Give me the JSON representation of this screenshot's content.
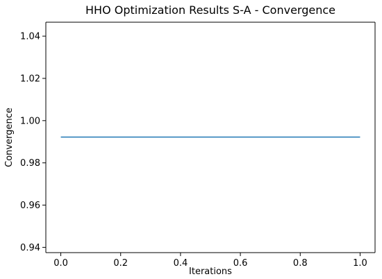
{
  "chart_data": {
    "type": "line",
    "title": "HHO Optimization Results S-A - Convergence",
    "xlabel": "Iterations",
    "ylabel": "Convergence",
    "xlim": [
      -0.05,
      1.05
    ],
    "ylim": [
      0.9375,
      1.0466
    ],
    "xticks": [
      0.0,
      0.2,
      0.4,
      0.6,
      0.8,
      1.0
    ],
    "xtick_labels": [
      "0.0",
      "0.2",
      "0.4",
      "0.6",
      "0.8",
      "1.0"
    ],
    "yticks": [
      0.94,
      0.96,
      0.98,
      1.0,
      1.02,
      1.04
    ],
    "ytick_labels": [
      "0.94",
      "0.96",
      "0.98",
      "1.00",
      "1.02",
      "1.04"
    ],
    "grid": false,
    "series": [
      {
        "color": "#1f77b4",
        "x": [
          0,
          1
        ],
        "y": [
          0.9922,
          0.9922
        ]
      }
    ]
  }
}
